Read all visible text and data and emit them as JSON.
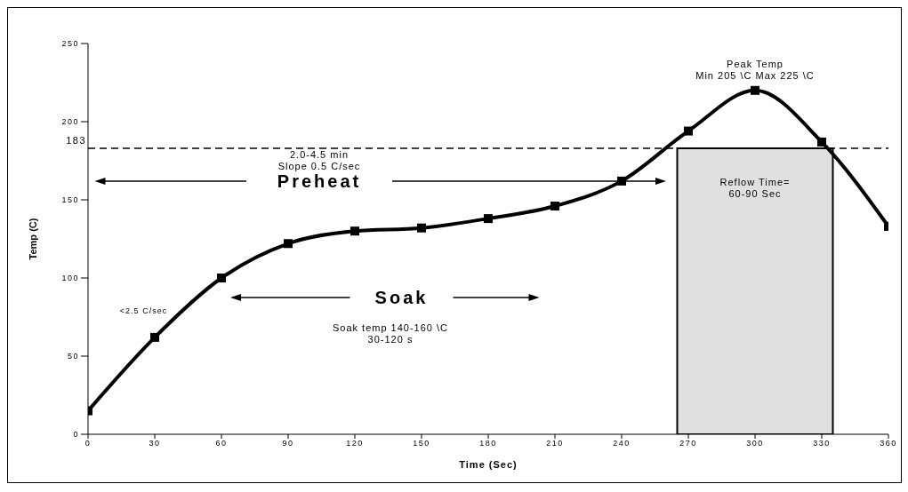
{
  "chart_data": {
    "type": "line",
    "xlabel": "Time (Sec)",
    "ylabel": "Temp (C)",
    "x": [
      0,
      30,
      60,
      90,
      120,
      150,
      180,
      210,
      240,
      270,
      300,
      330,
      360
    ],
    "series": [
      {
        "color": "#000000",
        "values": [
          15,
          62,
          100,
          122,
          130,
          132,
          138,
          146,
          162,
          194,
          220,
          187,
          133
        ]
      }
    ],
    "xlim": [
      0,
      360
    ],
    "xticks": [
      0,
      30,
      60,
      90,
      120,
      150,
      180,
      210,
      240,
      270,
      300,
      330,
      360
    ],
    "ylim": [
      0,
      250
    ],
    "yticks": [
      0,
      50,
      100,
      150,
      200,
      250
    ],
    "marker": "square",
    "line_style": "solid",
    "grid": false,
    "legend": false,
    "ref_lines": [
      {
        "axis": "y",
        "value": 183,
        "label": "183",
        "line_style": "dashed",
        "color": "#000000"
      }
    ],
    "bands": [
      {
        "axis": "x",
        "from": 265,
        "to": 335,
        "label": "Reflow Time=\n60-90 Sec",
        "color": "#e0e0e0"
      }
    ],
    "annotations": [
      "Peak Temp\nMin 205 \\C Max 225 \\C",
      "2.0-4.5 min\nSlope 0.5 C/sec",
      "Preheat",
      "Soak",
      "Soak temp 140-160 \\C\n30-120 s",
      "<2.5 C/sec"
    ]
  }
}
